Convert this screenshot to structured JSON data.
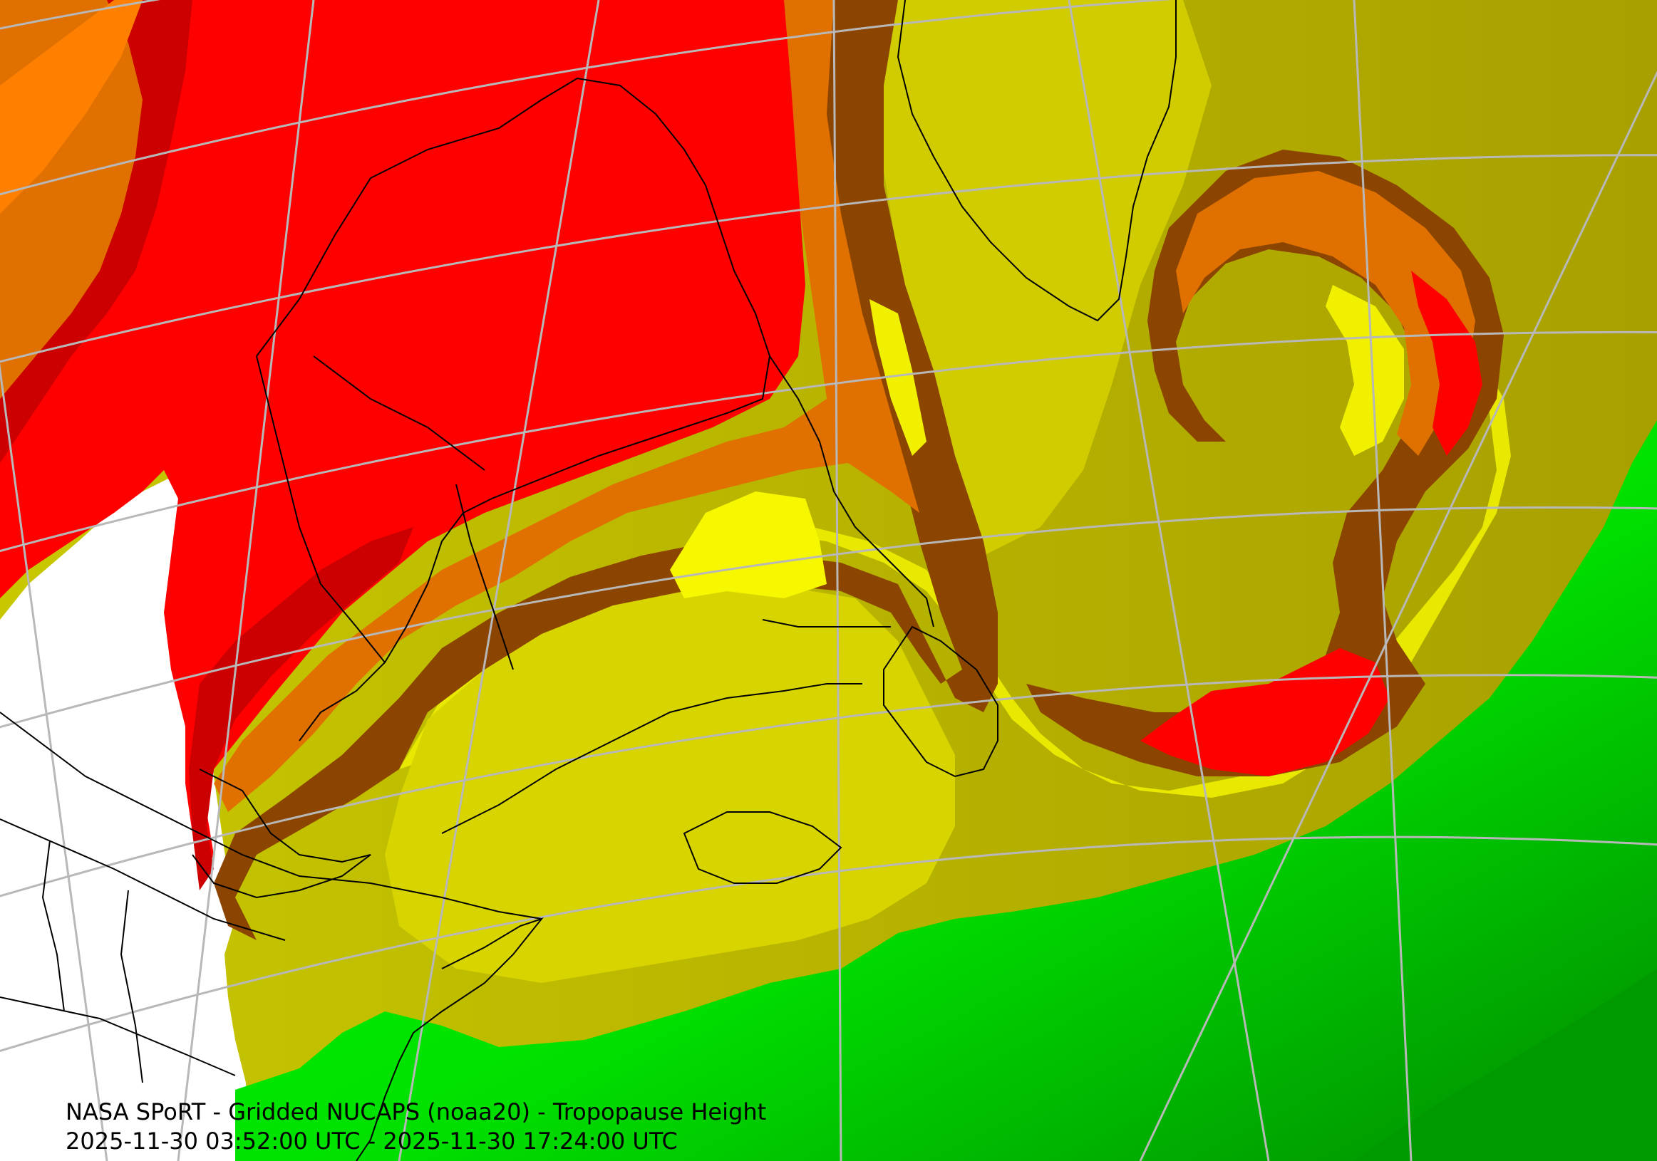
{
  "caption": {
    "title": "NASA SPoRT - Gridded NUCAPS (noaa20) - Tropopause Height",
    "time_range": "2025-11-30 03:52:00 UTC - 2025-11-30 17:24:00 UTC"
  },
  "map": {
    "field": "Tropopause Height",
    "colors": {
      "red": "#ff0000",
      "dark_red": "#cc0000",
      "orange": "#ff8000",
      "dark_orange": "#d96c00",
      "brown": "#8b4500",
      "yellow": "#f7f700",
      "gold": "#dddd00",
      "olive_light": "#c8c800",
      "olive": "#a8a000",
      "green": "#00ff00",
      "dark_green": "#009a00",
      "no_data": "#ffffff",
      "graticule": "#b8b8b8",
      "coastline": "#000000"
    }
  }
}
